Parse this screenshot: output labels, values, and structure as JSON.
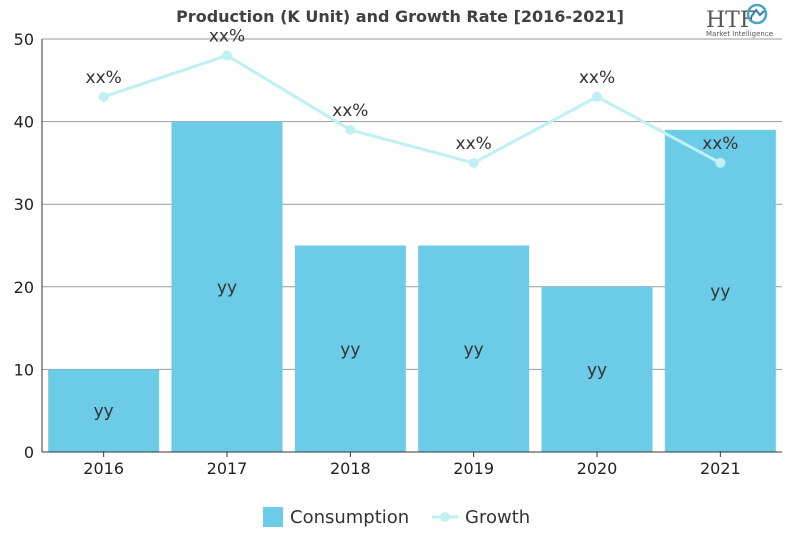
{
  "chart_data": {
    "type": "bar",
    "title": "Production (K Unit) and Growth Rate [2016-2021]",
    "categories": [
      "2016",
      "2017",
      "2018",
      "2019",
      "2020",
      "2021"
    ],
    "ylim": [
      0,
      50
    ],
    "yticks": [
      "0",
      "10",
      "20",
      "30",
      "40",
      "50"
    ],
    "grid": true,
    "legend_position": "bottom",
    "series": [
      {
        "name": "Consumption",
        "kind": "bar",
        "color": "#6ccbe6",
        "values": [
          10,
          40,
          25,
          25,
          20,
          39
        ],
        "labels": [
          "yy",
          "yy",
          "yy",
          "yy",
          "yy",
          "yy"
        ]
      },
      {
        "name": "Growth",
        "kind": "line",
        "color": "#bff0f3",
        "values": [
          43,
          48,
          39,
          35,
          43,
          35
        ],
        "labels": [
          "xx%",
          "xx%",
          "xx%",
          "xx%",
          "xx%",
          "xx%"
        ]
      }
    ]
  },
  "logo": {
    "text": "HTF",
    "subtext": "Market Intelligence"
  }
}
